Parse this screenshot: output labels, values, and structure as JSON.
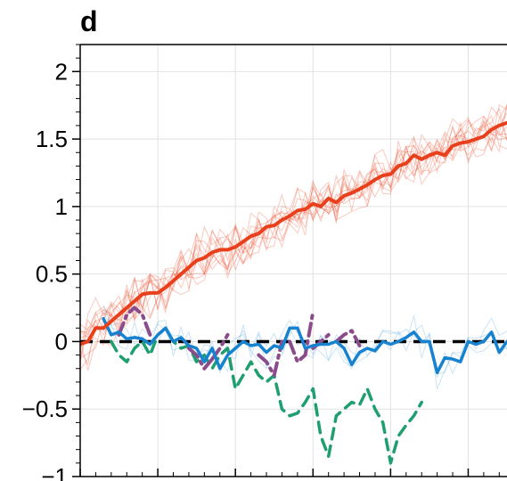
{
  "panel_label": "d",
  "chart_data": {
    "type": "line",
    "title": "",
    "xlabel": "",
    "ylabel": "",
    "xlim": [
      0,
      55
    ],
    "ylim": [
      -1,
      2.2
    ],
    "grid": true,
    "yticks": [
      {
        "value": -1,
        "label": "−1"
      },
      {
        "value": -0.5,
        "label": "−0.5"
      },
      {
        "value": 0,
        "label": "0"
      },
      {
        "value": 0.5,
        "label": "0.5"
      },
      {
        "value": 1,
        "label": "1"
      },
      {
        "value": 1.5,
        "label": "1.5"
      },
      {
        "value": 2,
        "label": "2"
      }
    ],
    "xticks_major": [
      0,
      10,
      20,
      30,
      40,
      50
    ],
    "reference_line": {
      "y": 0,
      "color": "#000000",
      "dash": "dashed"
    },
    "series": [
      {
        "role": "main",
        "color": "#e8401c",
        "style": "solid",
        "x": [
          0,
          1,
          2,
          3,
          4,
          5,
          6,
          7,
          8,
          9,
          10,
          11,
          12,
          13,
          14,
          15,
          16,
          17,
          18,
          19,
          20,
          21,
          22,
          23,
          24,
          25,
          26,
          27,
          28,
          29,
          30,
          31,
          32,
          33,
          34,
          35,
          36,
          37,
          38,
          39,
          40,
          41,
          42,
          43,
          44,
          45,
          46,
          47,
          48,
          49,
          50,
          51,
          52,
          53,
          54,
          55
        ],
        "values": [
          -0.02,
          0.0,
          0.1,
          0.1,
          0.15,
          0.2,
          0.25,
          0.3,
          0.35,
          0.36,
          0.36,
          0.4,
          0.45,
          0.5,
          0.55,
          0.6,
          0.62,
          0.66,
          0.68,
          0.68,
          0.7,
          0.74,
          0.78,
          0.8,
          0.85,
          0.86,
          0.9,
          0.93,
          0.97,
          0.98,
          1.02,
          1.0,
          1.06,
          1.03,
          1.08,
          1.1,
          1.13,
          1.16,
          1.2,
          1.23,
          1.24,
          1.3,
          1.32,
          1.38,
          1.35,
          1.38,
          1.4,
          1.38,
          1.45,
          1.47,
          1.48,
          1.5,
          1.52,
          1.57,
          1.6,
          1.62
        ]
      },
      {
        "role": "blue",
        "color": "#1782d0",
        "style": "solid",
        "x": [
          3,
          4,
          5,
          6,
          7,
          8,
          9,
          10,
          11,
          12,
          13,
          14,
          15,
          16,
          17,
          18,
          19,
          20,
          21,
          22,
          23,
          24,
          25,
          26,
          27,
          28,
          29,
          30,
          31,
          32,
          33,
          34,
          35,
          36,
          37,
          38,
          39,
          40,
          41,
          42,
          43,
          44,
          45,
          46,
          47,
          48,
          49,
          50,
          51,
          52,
          53,
          54,
          55
        ],
        "values": [
          0.17,
          0.05,
          0.07,
          0.02,
          0.03,
          0.02,
          -0.02,
          0.05,
          0.1,
          0.0,
          0.03,
          -0.03,
          -0.05,
          -0.15,
          -0.05,
          -0.2,
          -0.1,
          -0.05,
          0.0,
          -0.03,
          -0.02,
          -0.08,
          -0.03,
          -0.05,
          0.1,
          0.1,
          -0.05,
          -0.03,
          -0.02,
          -0.02,
          0.0,
          -0.05,
          -0.17,
          -0.08,
          -0.05,
          -0.07,
          0.0,
          -0.02,
          0.0,
          0.03,
          0.07,
          0.0,
          0.0,
          -0.23,
          -0.12,
          -0.13,
          -0.15,
          0.0,
          -0.02,
          0.0,
          0.07,
          -0.08,
          0.0
        ]
      },
      {
        "role": "purple",
        "color": "#8b4c8c",
        "style": "dashdot",
        "segments": [
          {
            "x": [
              5,
              6,
              7,
              8,
              9
            ],
            "values": [
              0.05,
              0.2,
              0.25,
              0.2,
              0.05
            ]
          },
          {
            "x": [
              14,
              15,
              16,
              17
            ],
            "values": [
              -0.05,
              -0.1,
              -0.2,
              -0.13
            ]
          },
          {
            "x": [
              17,
              18,
              19
            ],
            "values": [
              -0.13,
              -0.05,
              0.05
            ]
          },
          {
            "x": [
              23,
              24,
              25,
              26
            ],
            "values": [
              -0.1,
              -0.15,
              -0.25,
              0.0
            ]
          },
          {
            "x": [
              27,
              28,
              29,
              30
            ],
            "values": [
              0.0,
              -0.15,
              -0.1,
              0.22
            ]
          },
          {
            "x": [
              30,
              31,
              32
            ],
            "values": [
              -0.05,
              0.0,
              0.05
            ]
          },
          {
            "x": [
              33,
              34,
              35,
              36
            ],
            "values": [
              0.0,
              0.05,
              0.08,
              -0.03
            ]
          }
        ]
      },
      {
        "role": "green",
        "color": "#1f9e6f",
        "style": "dashed",
        "x": [
          4,
          5,
          6,
          7,
          8,
          9,
          10,
          11,
          12,
          13,
          14,
          15,
          16,
          17,
          18,
          19,
          20,
          21,
          22,
          23,
          24,
          25,
          26,
          27,
          28,
          29,
          30,
          31,
          32,
          33,
          34,
          35,
          36,
          37,
          38,
          39,
          40,
          41,
          42,
          43,
          44
        ],
        "values": [
          0.0,
          -0.1,
          -0.15,
          -0.05,
          0.0,
          -0.1,
          0.05,
          0.1,
          0.0,
          -0.05,
          -0.03,
          -0.15,
          -0.1,
          -0.2,
          -0.1,
          -0.05,
          -0.35,
          -0.25,
          -0.15,
          -0.25,
          -0.3,
          -0.25,
          -0.5,
          -0.55,
          -0.53,
          -0.45,
          -0.35,
          -0.7,
          -0.85,
          -0.55,
          -0.5,
          -0.45,
          -0.47,
          -0.35,
          -0.5,
          -0.6,
          -0.9,
          -0.7,
          -0.62,
          -0.55,
          -0.45
        ]
      }
    ],
    "ensemble": {
      "color": "#e8401c",
      "count": 12,
      "description_visible": false
    }
  }
}
